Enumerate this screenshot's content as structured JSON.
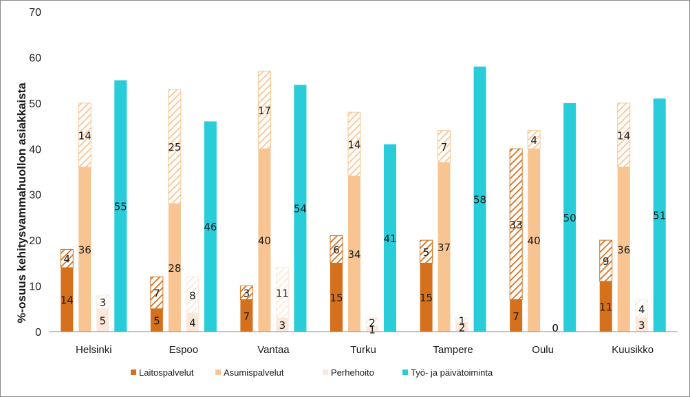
{
  "chart_data": {
    "type": "bar",
    "stacked_within_group": true,
    "ylabel": "%-osuus kehitysvammahuollon asiakkaista",
    "ylim": [
      0,
      70
    ],
    "yticks": [
      0,
      10,
      20,
      30,
      40,
      50,
      60,
      70
    ],
    "grid": false,
    "legend_position": "bottom",
    "categories": [
      "Helsinki",
      "Espoo",
      "Vantaa",
      "Turku",
      "Tampere",
      "Oulu",
      "Kuusikko"
    ],
    "series": [
      {
        "name": "Laitospalvelut",
        "color": "#d5701c",
        "segments": [
          {
            "name": "",
            "pattern": "solid",
            "values": [
              14,
              5,
              7,
              15,
              15,
              7,
              11
            ]
          },
          {
            "name": "",
            "pattern": "hatch",
            "values": [
              4,
              7,
              3,
              6,
              5,
              33,
              9
            ]
          }
        ]
      },
      {
        "name": "Asumispalvelut",
        "color": "#f8c592",
        "segments": [
          {
            "name": "",
            "pattern": "solid",
            "values": [
              36,
              28,
              40,
              34,
              37,
              40,
              36
            ]
          },
          {
            "name": "",
            "pattern": "hatch",
            "values": [
              14,
              25,
              17,
              14,
              7,
              4,
              14
            ]
          }
        ]
      },
      {
        "name": "Perhehoito",
        "color": "#fce8db",
        "segments": [
          {
            "name": "",
            "pattern": "solid",
            "values": [
              5,
              4,
              3,
              1,
              2,
              0,
              3
            ]
          },
          {
            "name": "",
            "pattern": "hatch",
            "values": [
              3,
              8,
              11,
              2,
              1,
              0,
              4
            ]
          }
        ]
      },
      {
        "name": "Työ- ja päivätoiminta",
        "color": "#28cdd9",
        "segments": [
          {
            "name": "",
            "pattern": "solid",
            "values": [
              55,
              46,
              54,
              41,
              58,
              50,
              51
            ]
          }
        ]
      }
    ]
  }
}
